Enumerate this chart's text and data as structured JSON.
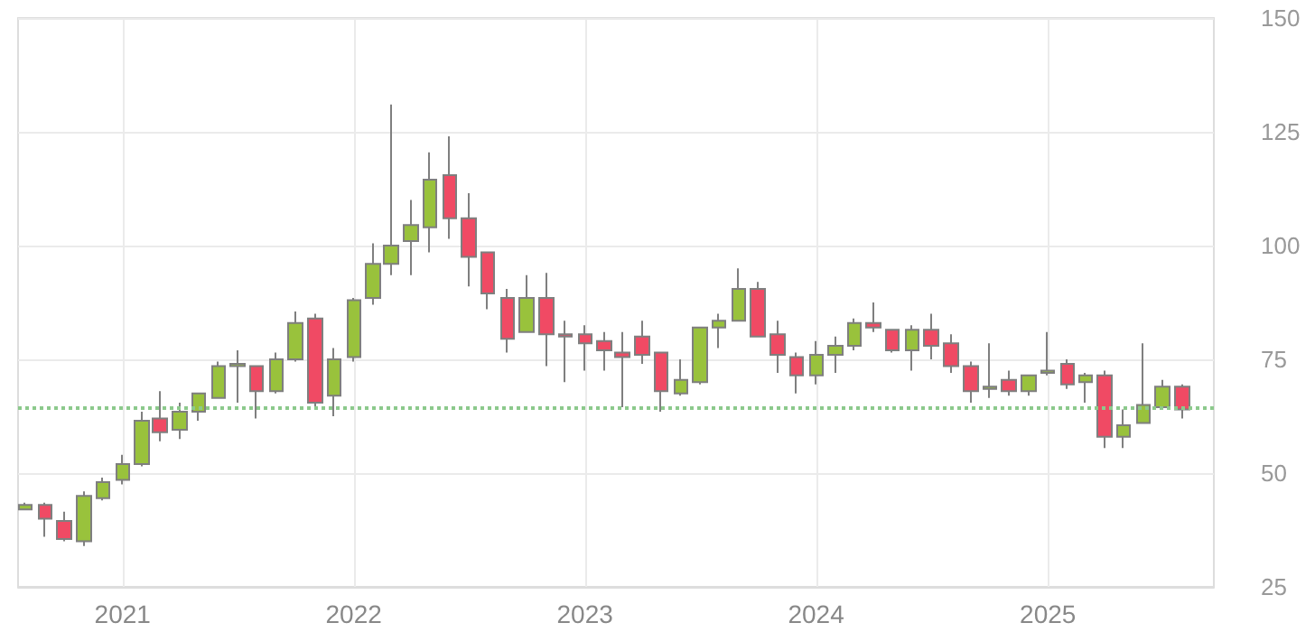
{
  "chart_data": {
    "type": "candlestick",
    "x": [
      "2020-08",
      "2020-09",
      "2020-10",
      "2020-11",
      "2020-12",
      "2021-01",
      "2021-02",
      "2021-03",
      "2021-04",
      "2021-05",
      "2021-06",
      "2021-07",
      "2021-08",
      "2021-09",
      "2021-10",
      "2021-11",
      "2021-12",
      "2022-01",
      "2022-02",
      "2022-03",
      "2022-04",
      "2022-05",
      "2022-06",
      "2022-07",
      "2022-08",
      "2022-09",
      "2022-10",
      "2022-11",
      "2022-12",
      "2023-01",
      "2023-02",
      "2023-03",
      "2023-04",
      "2023-05",
      "2023-06",
      "2023-07",
      "2023-08",
      "2023-09",
      "2023-10",
      "2023-11",
      "2023-12",
      "2024-01",
      "2024-02",
      "2024-03",
      "2024-04",
      "2024-05",
      "2024-06",
      "2024-07",
      "2024-08",
      "2024-09",
      "2024-10",
      "2024-11",
      "2024-12",
      "2025-01",
      "2025-02",
      "2025-03",
      "2025-04",
      "2025-05",
      "2025-06",
      "2025-07",
      "2025-08"
    ],
    "ohlc": [
      [
        42,
        43.5,
        42,
        43
      ],
      [
        43,
        43.5,
        36,
        40
      ],
      [
        39.5,
        41.5,
        35,
        35.5
      ],
      [
        35,
        46,
        34,
        45
      ],
      [
        44.5,
        49,
        44,
        48
      ],
      [
        48.5,
        54,
        47.5,
        52
      ],
      [
        52,
        63.5,
        51.5,
        61.5
      ],
      [
        62,
        68,
        57,
        59
      ],
      [
        59.5,
        65.5,
        57.5,
        63.5
      ],
      [
        63.5,
        67.5,
        61.5,
        67.5
      ],
      [
        66.5,
        74.5,
        66.5,
        73.5
      ],
      [
        73.5,
        77,
        65.5,
        74
      ],
      [
        73.5,
        73.5,
        62,
        68
      ],
      [
        68,
        76.5,
        67.5,
        75
      ],
      [
        75,
        85.5,
        74.5,
        83
      ],
      [
        84,
        85,
        64.5,
        65.5
      ],
      [
        67,
        77.5,
        62.5,
        75
      ],
      [
        75.5,
        88.5,
        74.5,
        88
      ],
      [
        88.5,
        100.5,
        87,
        96
      ],
      [
        96,
        131,
        93.5,
        100
      ],
      [
        101,
        110,
        93.5,
        104.5
      ],
      [
        104,
        120.5,
        98.5,
        114.5
      ],
      [
        115.5,
        124,
        101.5,
        106
      ],
      [
        106,
        111.5,
        91,
        97.5
      ],
      [
        98.5,
        98.5,
        86,
        89.5
      ],
      [
        88.5,
        90.5,
        76.5,
        79.5
      ],
      [
        81,
        93.5,
        81,
        88.5
      ],
      [
        88.5,
        94,
        73.5,
        80.5
      ],
      [
        80.5,
        83.5,
        70,
        80
      ],
      [
        80.5,
        82.5,
        72.5,
        78.5
      ],
      [
        79,
        81,
        72.5,
        77
      ],
      [
        76.5,
        81,
        64.5,
        75.5
      ],
      [
        80,
        83.5,
        74,
        76
      ],
      [
        76.5,
        76.5,
        63.5,
        68
      ],
      [
        67.5,
        75,
        67,
        70.5
      ],
      [
        70,
        82,
        69.5,
        82
      ],
      [
        82,
        85,
        77.5,
        83.5
      ],
      [
        83.5,
        95,
        83.5,
        90.5
      ],
      [
        90.5,
        92,
        80,
        80
      ],
      [
        80.5,
        83.5,
        72,
        76
      ],
      [
        75.5,
        76.5,
        67.5,
        71.5
      ],
      [
        71.5,
        79,
        69.5,
        76
      ],
      [
        76,
        80,
        72,
        78
      ],
      [
        78,
        84,
        77,
        83
      ],
      [
        83,
        87.5,
        81,
        82
      ],
      [
        81.5,
        81.5,
        76.5,
        77
      ],
      [
        77,
        82.5,
        72.5,
        81.5
      ],
      [
        81.5,
        85,
        75,
        78
      ],
      [
        78.5,
        80.5,
        72,
        73.5
      ],
      [
        73.5,
        74.5,
        65.5,
        68
      ],
      [
        68.5,
        78.5,
        66.5,
        69
      ],
      [
        70.5,
        72.5,
        67,
        68
      ],
      [
        68,
        71.5,
        67,
        71.5
      ],
      [
        72,
        81,
        71.5,
        72.5
      ],
      [
        74,
        75,
        68.5,
        69.5
      ],
      [
        70,
        72,
        65.5,
        71.5
      ],
      [
        71.5,
        72.5,
        55.5,
        58
      ],
      [
        58,
        64,
        55.5,
        60.5
      ],
      [
        61,
        78.5,
        61,
        65
      ],
      [
        64.5,
        70.5,
        64.5,
        69
      ],
      [
        69,
        69.5,
        62,
        64
      ]
    ],
    "colors": [
      "#99c23c",
      "#f04a64",
      "#f04a64",
      "#99c23c",
      "#99c23c",
      "#99c23c",
      "#99c23c",
      "#f04a64",
      "#99c23c",
      "#99c23c",
      "#99c23c",
      "#99c23c",
      "#f04a64",
      "#99c23c",
      "#99c23c",
      "#f04a64",
      "#99c23c",
      "#99c23c",
      "#99c23c",
      "#99c23c",
      "#99c23c",
      "#99c23c",
      "#f04a64",
      "#f04a64",
      "#f04a64",
      "#f04a64",
      "#99c23c",
      "#f04a64",
      "#f04a64",
      "#f04a64",
      "#f04a64",
      "#f04a64",
      "#f04a64",
      "#f04a64",
      "#99c23c",
      "#99c23c",
      "#99c23c",
      "#99c23c",
      "#f04a64",
      "#f04a64",
      "#f04a64",
      "#99c23c",
      "#99c23c",
      "#99c23c",
      "#f04a64",
      "#f04a64",
      "#99c23c",
      "#f04a64",
      "#f04a64",
      "#f04a64",
      "#99c23c",
      "#f04a64",
      "#99c23c",
      "#99c23c",
      "#f04a64",
      "#99c23c",
      "#f04a64",
      "#99c23c",
      "#99c23c",
      "#99c23c",
      "#f04a64"
    ],
    "xlim": [
      "2020-07-20",
      "2025-09-20"
    ],
    "xticks": [
      "2021",
      "2022",
      "2023",
      "2024",
      "2025"
    ],
    "ylim": [
      25,
      150
    ],
    "yticks": [
      25,
      50,
      75,
      100,
      125,
      150
    ],
    "grid": true,
    "ref_lines": [
      {
        "axis": "y",
        "value": 64.5,
        "color": "#8cc98c",
        "line_style": "dotted"
      }
    ]
  }
}
